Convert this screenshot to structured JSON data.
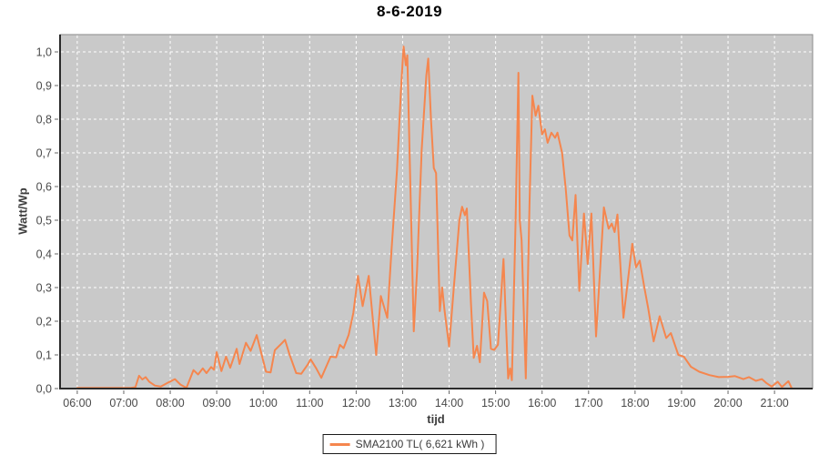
{
  "chart": {
    "title": "8-6-2019",
    "x_axis_label": "tijd",
    "y_axis_label": "Watt/Wp",
    "legend_label": "SMA2100 TL( 6,621 kWh )"
  },
  "colors": {
    "series": "#F5864E",
    "plot_background": "#C9C9C9",
    "gridline": "#FFFFFF",
    "frame": "#8A8A8A",
    "axis_line": "#2B2B2B",
    "tick_mark": "#666666",
    "tick_label": "#4A4A4A",
    "title_text": "#000000"
  },
  "chart_data": {
    "type": "line",
    "title": "8-6-2019",
    "xlabel": "tijd",
    "ylabel": "Watt/Wp",
    "grid": true,
    "legend_position": "bottom-center",
    "series_name": "SMA2100 TL( 6,621 kWh )",
    "x_unit": "time of day (hours)",
    "y_unit": "Watt/Wp",
    "x_range_hours": [
      5.63,
      21.82
    ],
    "ylim": [
      0,
      1.0514
    ],
    "x_tick_hours": [
      6,
      7,
      8,
      9,
      10,
      11,
      12,
      13,
      14,
      15,
      16,
      17,
      18,
      19,
      20,
      21
    ],
    "x_tick_labels": [
      "06:00",
      "07:00",
      "08:00",
      "09:00",
      "10:00",
      "11:00",
      "12:00",
      "13:00",
      "14:00",
      "15:00",
      "16:00",
      "17:00",
      "18:00",
      "19:00",
      "20:00",
      "21:00"
    ],
    "y_tick_values": [
      0,
      0.1,
      0.2,
      0.3,
      0.4,
      0.5,
      0.6,
      0.7,
      0.8,
      0.9,
      1.0
    ],
    "y_tick_labels": [
      "0,0",
      "0,1",
      "0,2",
      "0,3",
      "0,4",
      "0,5",
      "0,6",
      "0,7",
      "0,8",
      "0,9",
      "1,0"
    ],
    "series": [
      {
        "name": "SMA2100 TL( 6,621 kWh )",
        "color": "#F5864E",
        "points_hour_value": [
          [
            6.0,
            0.002
          ],
          [
            6.25,
            0.002
          ],
          [
            6.5,
            0.002
          ],
          [
            6.75,
            0.002
          ],
          [
            7.0,
            0.002
          ],
          [
            7.15,
            0.002
          ],
          [
            7.25,
            0.004
          ],
          [
            7.33,
            0.038
          ],
          [
            7.4,
            0.027
          ],
          [
            7.47,
            0.034
          ],
          [
            7.55,
            0.02
          ],
          [
            7.67,
            0.009
          ],
          [
            7.8,
            0.006
          ],
          [
            7.96,
            0.018
          ],
          [
            8.1,
            0.028
          ],
          [
            8.22,
            0.012
          ],
          [
            8.35,
            0.002
          ],
          [
            8.5,
            0.055
          ],
          [
            8.6,
            0.042
          ],
          [
            8.7,
            0.06
          ],
          [
            8.78,
            0.046
          ],
          [
            8.88,
            0.064
          ],
          [
            8.94,
            0.056
          ],
          [
            9.0,
            0.108
          ],
          [
            9.1,
            0.052
          ],
          [
            9.2,
            0.095
          ],
          [
            9.29,
            0.062
          ],
          [
            9.43,
            0.118
          ],
          [
            9.49,
            0.073
          ],
          [
            9.63,
            0.136
          ],
          [
            9.73,
            0.112
          ],
          [
            9.86,
            0.159
          ],
          [
            10.06,
            0.05
          ],
          [
            10.16,
            0.048
          ],
          [
            10.25,
            0.114
          ],
          [
            10.41,
            0.136
          ],
          [
            10.47,
            0.145
          ],
          [
            10.57,
            0.1
          ],
          [
            10.71,
            0.046
          ],
          [
            10.82,
            0.044
          ],
          [
            10.9,
            0.06
          ],
          [
            10.96,
            0.072
          ],
          [
            11.02,
            0.087
          ],
          [
            11.14,
            0.06
          ],
          [
            11.25,
            0.032
          ],
          [
            11.45,
            0.095
          ],
          [
            11.57,
            0.093
          ],
          [
            11.65,
            0.13
          ],
          [
            11.73,
            0.12
          ],
          [
            11.84,
            0.16
          ],
          [
            11.94,
            0.225
          ],
          [
            12.04,
            0.335
          ],
          [
            12.14,
            0.245
          ],
          [
            12.27,
            0.335
          ],
          [
            12.43,
            0.1
          ],
          [
            12.53,
            0.275
          ],
          [
            12.67,
            0.21
          ],
          [
            12.76,
            0.41
          ],
          [
            12.88,
            0.65
          ],
          [
            12.97,
            0.9
          ],
          [
            13.02,
            1.016
          ],
          [
            13.07,
            0.96
          ],
          [
            13.1,
            0.99
          ],
          [
            13.24,
            0.17
          ],
          [
            13.31,
            0.35
          ],
          [
            13.41,
            0.71
          ],
          [
            13.51,
            0.93
          ],
          [
            13.55,
            0.98
          ],
          [
            13.61,
            0.8
          ],
          [
            13.67,
            0.655
          ],
          [
            13.72,
            0.64
          ],
          [
            13.8,
            0.23
          ],
          [
            13.85,
            0.3
          ],
          [
            13.9,
            0.235
          ],
          [
            14.0,
            0.125
          ],
          [
            14.1,
            0.3
          ],
          [
            14.22,
            0.5
          ],
          [
            14.28,
            0.54
          ],
          [
            14.34,
            0.515
          ],
          [
            14.38,
            0.535
          ],
          [
            14.47,
            0.25
          ],
          [
            14.53,
            0.091
          ],
          [
            14.6,
            0.127
          ],
          [
            14.66,
            0.078
          ],
          [
            14.75,
            0.285
          ],
          [
            14.82,
            0.26
          ],
          [
            14.9,
            0.118
          ],
          [
            14.97,
            0.115
          ],
          [
            15.05,
            0.13
          ],
          [
            15.17,
            0.385
          ],
          [
            15.27,
            0.03
          ],
          [
            15.31,
            0.06
          ],
          [
            15.35,
            0.025
          ],
          [
            15.43,
            0.5
          ],
          [
            15.49,
            0.938
          ],
          [
            15.52,
            0.5
          ],
          [
            15.56,
            0.44
          ],
          [
            15.65,
            0.03
          ],
          [
            15.73,
            0.55
          ],
          [
            15.79,
            0.87
          ],
          [
            15.86,
            0.81
          ],
          [
            15.92,
            0.84
          ],
          [
            16.0,
            0.755
          ],
          [
            16.06,
            0.77
          ],
          [
            16.12,
            0.73
          ],
          [
            16.2,
            0.76
          ],
          [
            16.28,
            0.745
          ],
          [
            16.33,
            0.76
          ],
          [
            16.43,
            0.7
          ],
          [
            16.51,
            0.59
          ],
          [
            16.59,
            0.455
          ],
          [
            16.65,
            0.44
          ],
          [
            16.72,
            0.575
          ],
          [
            16.8,
            0.29
          ],
          [
            16.9,
            0.52
          ],
          [
            16.98,
            0.37
          ],
          [
            17.06,
            0.52
          ],
          [
            17.16,
            0.155
          ],
          [
            17.33,
            0.538
          ],
          [
            17.43,
            0.475
          ],
          [
            17.5,
            0.49
          ],
          [
            17.56,
            0.465
          ],
          [
            17.62,
            0.517
          ],
          [
            17.75,
            0.21
          ],
          [
            17.94,
            0.43
          ],
          [
            18.02,
            0.36
          ],
          [
            18.1,
            0.38
          ],
          [
            18.2,
            0.3
          ],
          [
            18.28,
            0.24
          ],
          [
            18.4,
            0.14
          ],
          [
            18.53,
            0.215
          ],
          [
            18.67,
            0.15
          ],
          [
            18.77,
            0.165
          ],
          [
            18.93,
            0.1
          ],
          [
            19.05,
            0.095
          ],
          [
            19.2,
            0.065
          ],
          [
            19.38,
            0.05
          ],
          [
            19.6,
            0.04
          ],
          [
            19.8,
            0.034
          ],
          [
            20.0,
            0.035
          ],
          [
            20.15,
            0.037
          ],
          [
            20.33,
            0.028
          ],
          [
            20.45,
            0.034
          ],
          [
            20.6,
            0.023
          ],
          [
            20.73,
            0.028
          ],
          [
            20.83,
            0.016
          ],
          [
            20.94,
            0.006
          ],
          [
            21.07,
            0.02
          ],
          [
            21.16,
            0.005
          ],
          [
            21.3,
            0.022
          ],
          [
            21.37,
            0.001
          ]
        ]
      }
    ]
  }
}
